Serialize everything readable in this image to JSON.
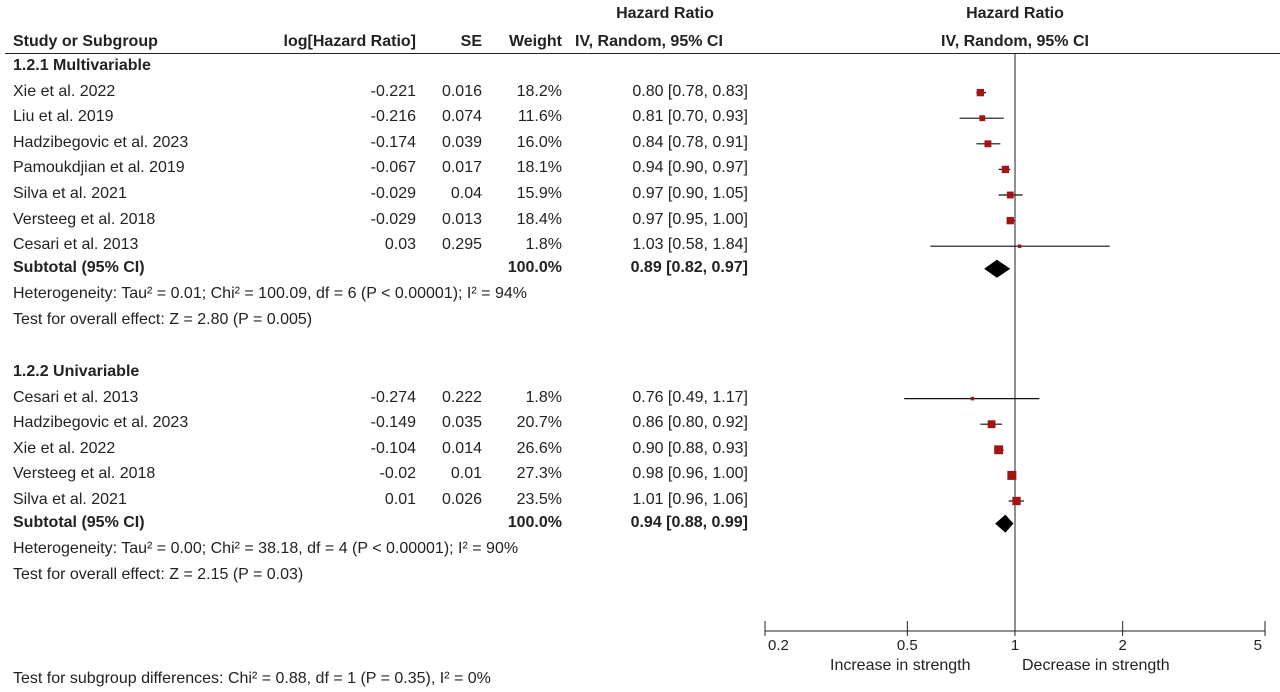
{
  "headers": {
    "study": "Study or Subgroup",
    "loghr": "log[Hazard Ratio]",
    "se": "SE",
    "weight": "Weight",
    "hr_top": "Hazard Ratio",
    "hr_method": "IV, Random, 95% CI",
    "plot_top": "Hazard Ratio",
    "plot_method": "IV, Random, 95% CI"
  },
  "subgroups": [
    {
      "title": "1.2.1 Multivariable",
      "studies": [
        {
          "name": "Xie et al. 2022",
          "loghr": "-0.221",
          "se": "0.016",
          "weight": "18.2%",
          "ci": "0.80 [0.78, 0.83]"
        },
        {
          "name": "Liu et al. 2019",
          "loghr": "-0.216",
          "se": "0.074",
          "weight": "11.6%",
          "ci": "0.81 [0.70, 0.93]"
        },
        {
          "name": "Hadzibegovic et al. 2023",
          "loghr": "-0.174",
          "se": "0.039",
          "weight": "16.0%",
          "ci": "0.84 [0.78, 0.91]"
        },
        {
          "name": "Pamoukdjian et al. 2019",
          "loghr": "-0.067",
          "se": "0.017",
          "weight": "18.1%",
          "ci": "0.94 [0.90, 0.97]"
        },
        {
          "name": "Silva et al. 2021",
          "loghr": "-0.029",
          "se": "0.04",
          "weight": "15.9%",
          "ci": "0.97 [0.90, 1.05]"
        },
        {
          "name": "Versteeg et al. 2018",
          "loghr": "-0.029",
          "se": "0.013",
          "weight": "18.4%",
          "ci": "0.97 [0.95, 1.00]"
        },
        {
          "name": "Cesari et al. 2013",
          "loghr": "0.03",
          "se": "0.295",
          "weight": "1.8%",
          "ci": "1.03 [0.58, 1.84]"
        }
      ],
      "subtotal_label": "Subtotal (95% CI)",
      "subtotal_weight": "100.0%",
      "subtotal_ci": "0.89 [0.82, 0.97]",
      "heterogeneity": "Heterogeneity: Tau² = 0.01; Chi² = 100.09, df = 6 (P < 0.00001); I² = 94%",
      "overall": "Test for overall effect: Z = 2.80 (P = 0.005)"
    },
    {
      "title": "1.2.2 Univariable",
      "studies": [
        {
          "name": "Cesari et al. 2013",
          "loghr": "-0.274",
          "se": "0.222",
          "weight": "1.8%",
          "ci": "0.76 [0.49, 1.17]"
        },
        {
          "name": "Hadzibegovic et al. 2023",
          "loghr": "-0.149",
          "se": "0.035",
          "weight": "20.7%",
          "ci": "0.86 [0.80, 0.92]"
        },
        {
          "name": "Xie et al. 2022",
          "loghr": "-0.104",
          "se": "0.014",
          "weight": "26.6%",
          "ci": "0.90 [0.88, 0.93]"
        },
        {
          "name": "Versteeg et al. 2018",
          "loghr": "-0.02",
          "se": "0.01",
          "weight": "27.3%",
          "ci": "0.98 [0.96, 1.00]"
        },
        {
          "name": "Silva et al. 2021",
          "loghr": "0.01",
          "se": "0.026",
          "weight": "23.5%",
          "ci": "1.01 [0.96, 1.06]"
        }
      ],
      "subtotal_label": "Subtotal (95% CI)",
      "subtotal_weight": "100.0%",
      "subtotal_ci": "0.94 [0.88, 0.99]",
      "heterogeneity": "Heterogeneity: Tau² = 0.00; Chi² = 38.18, df = 4 (P < 0.00001); I² = 90%",
      "overall": "Test for overall effect: Z = 2.15 (P = 0.03)"
    }
  ],
  "subgroup_differences": "Test for subgroup differences: Chi² = 0.88, df = 1 (P = 0.35), I² = 0%",
  "axis": {
    "favours_left": "Increase in strength",
    "favours_right": "Decrease in strength"
  },
  "colors": {
    "marker": "#a31515",
    "text": "#222222"
  },
  "chart_data": {
    "type": "scatter",
    "title": "Hazard Ratio",
    "subtitle": "IV, Random, 95% CI",
    "scale": "log",
    "xlim": [
      0.2,
      5
    ],
    "xticks": [
      0.2,
      0.5,
      1,
      2,
      5
    ],
    "xtick_labels": [
      "0.2",
      "0.5",
      "1",
      "2",
      "5"
    ],
    "reference_line": 1,
    "series": [
      {
        "name": "1.2.1 Multivariable",
        "points": [
          {
            "study": "Xie et al. 2022",
            "hr": 0.8,
            "lo": 0.78,
            "hi": 0.83,
            "weight": 18.2
          },
          {
            "study": "Liu et al. 2019",
            "hr": 0.81,
            "lo": 0.7,
            "hi": 0.93,
            "weight": 11.6
          },
          {
            "study": "Hadzibegovic et al. 2023",
            "hr": 0.84,
            "lo": 0.78,
            "hi": 0.91,
            "weight": 16.0
          },
          {
            "study": "Pamoukdjian et al. 2019",
            "hr": 0.94,
            "lo": 0.9,
            "hi": 0.97,
            "weight": 18.1
          },
          {
            "study": "Silva et al. 2021",
            "hr": 0.97,
            "lo": 0.9,
            "hi": 1.05,
            "weight": 15.9
          },
          {
            "study": "Versteeg et al. 2018",
            "hr": 0.97,
            "lo": 0.95,
            "hi": 1.0,
            "weight": 18.4
          },
          {
            "study": "Cesari et al. 2013",
            "hr": 1.03,
            "lo": 0.58,
            "hi": 1.84,
            "weight": 1.8
          }
        ],
        "subtotal": {
          "hr": 0.89,
          "lo": 0.82,
          "hi": 0.97
        }
      },
      {
        "name": "1.2.2 Univariable",
        "points": [
          {
            "study": "Cesari et al. 2013",
            "hr": 0.76,
            "lo": 0.49,
            "hi": 1.17,
            "weight": 1.8
          },
          {
            "study": "Hadzibegovic et al. 2023",
            "hr": 0.86,
            "lo": 0.8,
            "hi": 0.92,
            "weight": 20.7
          },
          {
            "study": "Xie et al. 2022",
            "hr": 0.9,
            "lo": 0.88,
            "hi": 0.93,
            "weight": 26.6
          },
          {
            "study": "Versteeg et al. 2018",
            "hr": 0.98,
            "lo": 0.96,
            "hi": 1.0,
            "weight": 27.3
          },
          {
            "study": "Silva et al. 2021",
            "hr": 1.01,
            "lo": 0.96,
            "hi": 1.06,
            "weight": 23.5
          }
        ],
        "subtotal": {
          "hr": 0.94,
          "lo": 0.88,
          "hi": 0.99
        }
      }
    ]
  }
}
